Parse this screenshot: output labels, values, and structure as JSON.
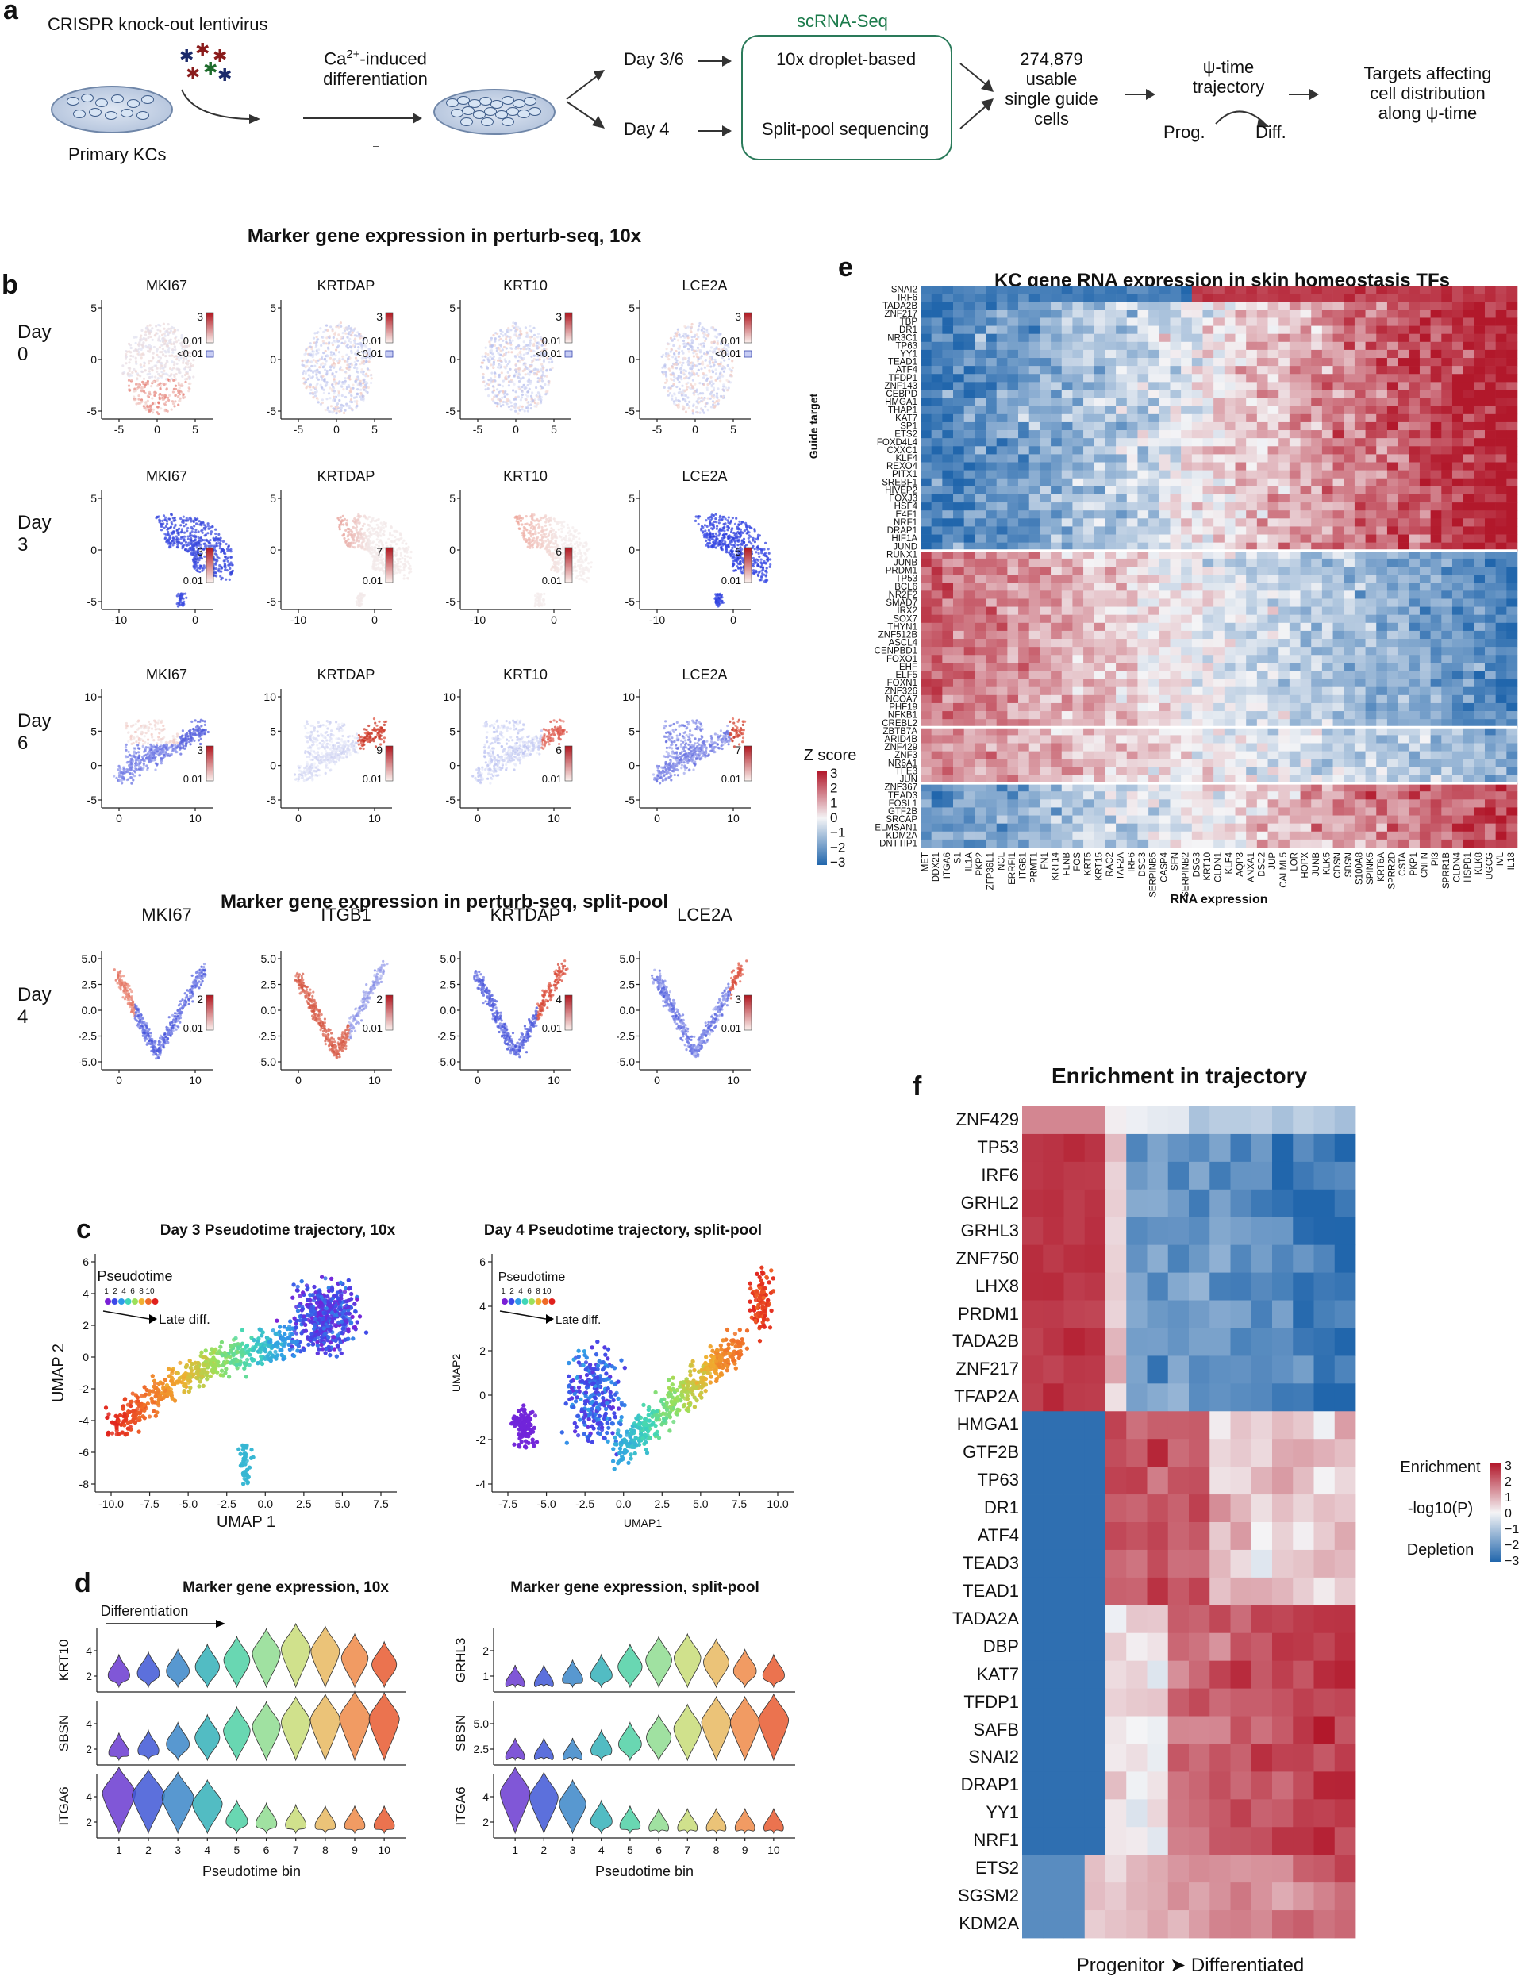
{
  "panel_labels": {
    "a": "a",
    "b": "b",
    "c": "c",
    "d": "d",
    "e": "e",
    "f": "f"
  },
  "panel_a": {
    "virus": "CRISPR knock-out lentivirus",
    "diff_prefix": "Ca",
    "diff_sup": "2+",
    "diff_suffix": "-induced",
    "diff_line2": "differentiation",
    "primary": "Primary KCs",
    "day36": "Day 3/6",
    "day4": "Day 4",
    "scrna": "scRNA-Seq",
    "droplet": "10x droplet-based",
    "splitpool": "Split-pool sequencing",
    "cells_l1": "274,879",
    "cells_l2": "usable",
    "cells_l3": "single guide",
    "cells_l4": "cells",
    "psi_l1": "ψ-time",
    "psi_l2": "trajectory",
    "prog": "Prog.",
    "diff": "Diff.",
    "targets_l1": "Targets affecting",
    "targets_l2": "cell distribution",
    "targets_l3": "along ψ-time"
  },
  "panel_b": {
    "title_10x": "Marker gene expression in perturb-seq, 10x",
    "title_split": "Marker gene expression in perturb-seq, split-pool",
    "day_labels": [
      "Day 0",
      "Day 3",
      "Day 6"
    ],
    "split_day": "Day 4",
    "genes_10x": [
      "MKI67",
      "KRTDAP",
      "KRT10",
      "LCE2A"
    ],
    "genes_split": [
      "MKI67",
      "ITGB1",
      "KRTDAP",
      "LCE2A"
    ],
    "day0_max": [
      "3",
      "3",
      "3",
      "3"
    ],
    "day0_min": "0.01",
    "day0_lt": "<0.01",
    "day3_max": [
      "3",
      "7",
      "6",
      "5"
    ],
    "day6_max": [
      "3",
      "9",
      "6",
      "7"
    ],
    "split_max": [
      "2",
      "2",
      "4",
      "3"
    ],
    "min_label": "0.01",
    "day0_xticks": [
      "-5",
      "0",
      "5"
    ],
    "day0_yticks": [
      "5",
      "0",
      "-5"
    ],
    "day3_xticks": [
      "-10",
      "0"
    ],
    "day3_yticks": [
      "5",
      "0",
      "-5"
    ],
    "day6_xticks": [
      "0",
      "10"
    ],
    "day6_yticks": [
      "10",
      "5",
      "0",
      "-5"
    ],
    "split_xticks": [
      "0",
      "10"
    ],
    "split_yticks": [
      "5.0",
      "2.5",
      "0.0",
      "-2.5",
      "-5.0"
    ]
  },
  "panel_c": {
    "left_title": "Day 3 Pseudotime trajectory, 10x",
    "right_title": "Day 4 Pseudotime trajectory, split-pool",
    "legend_title": "Pseudotime",
    "legend_ticks": [
      "1",
      "2",
      "4",
      "6",
      "8",
      "10"
    ],
    "legend_colors": [
      "#7a1fd6",
      "#3d48e8",
      "#2f9be8",
      "#3fd6b8",
      "#9be05a",
      "#f0b030",
      "#f06a28",
      "#e0201c"
    ],
    "late": "Late diff.",
    "left_xlabel": "UMAP 1",
    "left_ylabel": "UMAP 2",
    "right_xlabel": "UMAP1",
    "right_ylabel": "UMAP2",
    "left_xticks": [
      "-10.0",
      "-7.5",
      "-5.0",
      "-2.5",
      "0.0",
      "2.5",
      "5.0",
      "7.5"
    ],
    "left_yticks": [
      "6",
      "4",
      "2",
      "0",
      "-2",
      "-4",
      "-6",
      "-8"
    ],
    "right_xticks": [
      "-7.5",
      "-5.0",
      "-2.5",
      "0.0",
      "2.5",
      "5.0",
      "7.5",
      "10.0"
    ],
    "right_yticks": [
      "6",
      "4",
      "2",
      "0",
      "-2",
      "-4"
    ]
  },
  "panel_d": {
    "left_title": "Marker gene expression, 10x",
    "right_title": "Marker gene expression, split-pool",
    "diff_label": "Differentiation",
    "left_genes": [
      "KRT10",
      "SBSN",
      "ITGA6"
    ],
    "right_genes": [
      "GRHL3",
      "SBSN",
      "ITGA6"
    ],
    "xlabel": "Pseudotime bin",
    "bins": [
      "1",
      "2",
      "3",
      "4",
      "5",
      "6",
      "7",
      "8",
      "9",
      "10"
    ],
    "bin_colors": [
      "#6a3ad0",
      "#3f57d6",
      "#3b86c8",
      "#34b0b8",
      "#4fd0a4",
      "#8fdc90",
      "#c8dc78",
      "#e8b860",
      "#ee8a48",
      "#e85a30"
    ],
    "left_yticks": [
      [
        "2",
        "4"
      ],
      [
        "2",
        "4"
      ],
      [
        "2",
        "4"
      ]
    ],
    "right_yticks": [
      [
        "1",
        "2"
      ],
      [
        "2.5",
        "5.0"
      ],
      [
        "2",
        "4"
      ]
    ]
  },
  "chart_data": [
    {
      "type": "heatmap",
      "title": "KC gene RNA expression in skin homeostasis TFs",
      "xlabel": "RNA expression",
      "ylabel": "Guide target",
      "colorbar_title": "Z score",
      "colorbar_ticks": [
        "3",
        "2",
        "1",
        "0",
        "−1",
        "−2",
        "−3"
      ],
      "rows": [
        "SNAI2",
        "IRF6",
        "TADA2B",
        "ZNF217",
        "TBP",
        "DR1",
        "NR3C1",
        "TP63",
        "YY1",
        "TEAD1",
        "ATF4",
        "TFDP1",
        "ZNF143",
        "CEBPD",
        "HMGA1",
        "THAP1",
        "KAT7",
        "SP1",
        "ETS2",
        "FOXD4L4",
        "CXXC1",
        "KLF4",
        "REXO4",
        "PITX1",
        "SREBF1",
        "HIVEP2",
        "FOXJ3",
        "HSF4",
        "E4F1",
        "NRF1",
        "DRAP1",
        "HIF1A",
        "JUND",
        "RUNX1",
        "JUNB",
        "PRDM1",
        "TP53",
        "BCL6",
        "NR2F2",
        "SMAD7",
        "IRX2",
        "SOX7",
        "THYN1",
        "ZNF512B",
        "ASCL4",
        "CENPBD1",
        "FOXO1",
        "EHF",
        "ELF5",
        "FOXN1",
        "ZNF326",
        "NCOA7",
        "PHF19",
        "NFKB1",
        "CREBL2",
        "ZBTB7A",
        "ARID4B",
        "ZNF429",
        "ZNF3",
        "NR6A1",
        "TFE3",
        "JUN",
        "ZNF367",
        "TEAD3",
        "FOSL1",
        "GTF2B",
        "SRCAP",
        "ELMSAN1",
        "KDM2A",
        "DNTTIP1"
      ],
      "columns": [
        "MET",
        "DDX21",
        "ITGA6",
        "S1",
        "IL1A",
        "PKP2",
        "ZFP36L1",
        "NCL",
        "ERRFI1",
        "ITGB1",
        "PRMT1",
        "FN1",
        "KRT14",
        "FLNB",
        "FOS",
        "KRT5",
        "KRT15",
        "RAC2",
        "TAF2A",
        "IRF6",
        "DSC3",
        "SERPINB5",
        "CASP4",
        "SFN",
        "SERPINB2",
        "DSG3",
        "KRT10",
        "CLDN1",
        "KLF4",
        "AQP3",
        "ANXA1",
        "DSC2",
        "JUP",
        "CALML5",
        "LOR",
        "HOPX",
        "JUNB",
        "KLK5",
        "CDSN",
        "SBSN",
        "S100A8",
        "SPINK5",
        "KRT6A",
        "SPRR2D",
        "CSTA",
        "PKP1",
        "CNFN",
        "PI3",
        "SPRR1B",
        "CLDN4",
        "HSPB1",
        "KLK8",
        "UGCG",
        "IVL",
        "IL18"
      ]
    },
    {
      "type": "heatmap",
      "title": "Enrichment in trajectory",
      "xlabel": "Progenitor ➤ Differentiated",
      "colorbar_labels": [
        "Enrichment",
        "-log10(P)",
        "Depletion"
      ],
      "colorbar_ticks": [
        "3",
        "2",
        "1",
        "0",
        "−1",
        "−2",
        "−3"
      ],
      "rows": [
        "ZNF429",
        "TP53",
        "IRF6",
        "GRHL2",
        "GRHL3",
        "ZNF750",
        "LHX8",
        "PRDM1",
        "TADA2B",
        "ZNF217",
        "TFAP2A",
        "HMGA1",
        "GTF2B",
        "TP63",
        "DR1",
        "ATF4",
        "TEAD3",
        "TEAD1",
        "TADA2A",
        "DBP",
        "KAT7",
        "TFDP1",
        "SAFB",
        "SNAI2",
        "DRAP1",
        "YY1",
        "NRF1",
        "ETS2",
        "SGSM2",
        "KDM2A"
      ],
      "n_bins": 16
    }
  ]
}
